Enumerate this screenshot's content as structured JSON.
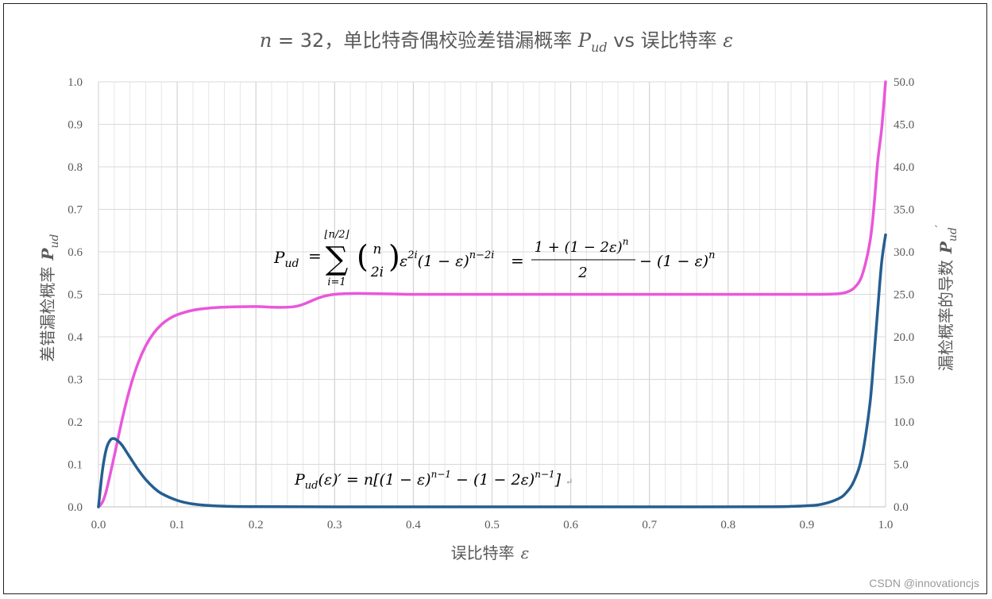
{
  "title": {
    "n_var": "n",
    "n_eq": " = 32，单比特奇偶校验差错漏概率 ",
    "p_var": "P",
    "p_sub": "ud",
    "vs_text": " vs 误比特率 ",
    "eps": "ε"
  },
  "y_left_label": {
    "text": "差错漏检概率",
    "p_var": "P",
    "p_sub": "ud"
  },
  "y_right_label": {
    "text": "漏检概率的导数",
    "p_var": "P",
    "p_sub": "ud",
    "prime": "′"
  },
  "x_label": {
    "text": "误比特率",
    "eps": "ε"
  },
  "formula_main": {
    "lhs_p": "P",
    "lhs_sub": "ud",
    "eq1": "=",
    "sum_top": "⌊n/2⌋",
    "sum_sym": "∑",
    "sum_bot": "i=1",
    "binom_top": "n",
    "binom_bot": "2i",
    "term1": "ε",
    "term1_sup": "2i",
    "term2": "(1 − ε)",
    "term2_sup": "n−2i",
    "eq2": "=",
    "frac_num": "1 + (1 − 2ε)",
    "frac_num_sup": "n",
    "frac_den": "2",
    "tail": "− (1 − ε)",
    "tail_sup": "n"
  },
  "formula_deriv": {
    "p": "P",
    "sub": "ud",
    "arg": "(ε)′ = n[(1 − ε)",
    "sup1": "n−1",
    "mid": " − (1 − 2ε)",
    "sup2": "n−1",
    "end": "]",
    "mark": "↵"
  },
  "watermark": "CSDN @innovationcjs",
  "chart_data": {
    "type": "line",
    "n": 32,
    "x_axis": {
      "range": [
        0,
        1
      ],
      "ticks": [
        0.0,
        0.1,
        0.2,
        0.3,
        0.4,
        0.5,
        0.6,
        0.7,
        0.8,
        0.9,
        1.0
      ],
      "tick_labels": [
        "0.0",
        "0.1",
        "0.2",
        "0.3",
        "0.4",
        "0.5",
        "0.6",
        "0.7",
        "0.8",
        "0.9",
        "1.0"
      ],
      "minor_step": 0.02
    },
    "y_left_axis": {
      "range": [
        0,
        1
      ],
      "ticks": [
        0.0,
        0.1,
        0.2,
        0.3,
        0.4,
        0.5,
        0.6,
        0.7,
        0.8,
        0.9,
        1.0
      ],
      "tick_labels": [
        "0.0",
        "0.1",
        "0.2",
        "0.3",
        "0.4",
        "0.5",
        "0.6",
        "0.7",
        "0.8",
        "0.9",
        "1.0"
      ]
    },
    "y_right_axis": {
      "range": [
        0,
        50
      ],
      "ticks": [
        0,
        5,
        10,
        15,
        20,
        25,
        30,
        35,
        40,
        45,
        50
      ],
      "tick_labels": [
        "0.0",
        "5.0",
        "10.0",
        "15.0",
        "20.0",
        "25.0",
        "30.0",
        "35.0",
        "40.0",
        "45.0",
        "50.0"
      ]
    },
    "grid": true,
    "series": [
      {
        "axis": "left",
        "color": "#e957da",
        "x": [
          0.0,
          0.005,
          0.01,
          0.02,
          0.03,
          0.04,
          0.05,
          0.06,
          0.07,
          0.08,
          0.09,
          0.1,
          0.12,
          0.14,
          0.16,
          0.18,
          0.2,
          0.25,
          0.3,
          0.4,
          0.5,
          0.6,
          0.7,
          0.8,
          0.85,
          0.9,
          0.92,
          0.94,
          0.95,
          0.96,
          0.97,
          0.98,
          0.985,
          0.99,
          0.995,
          1.0
        ],
        "y": [
          0.0,
          0.0109,
          0.038,
          0.1193,
          0.2052,
          0.2793,
          0.3368,
          0.3789,
          0.4085,
          0.4289,
          0.4427,
          0.452,
          0.4626,
          0.4675,
          0.4698,
          0.4708,
          0.4712,
          0.4714,
          0.5,
          0.5,
          0.5,
          0.5,
          0.5,
          0.5,
          0.5,
          0.5,
          0.5001,
          0.5014,
          0.5048,
          0.5151,
          0.544,
          0.6221,
          0.7015,
          0.8126,
          0.8896,
          1.0
        ]
      },
      {
        "axis": "right",
        "color": "#255e91",
        "x": [
          0.0,
          0.005,
          0.01,
          0.015,
          0.02,
          0.025,
          0.03,
          0.04,
          0.05,
          0.06,
          0.07,
          0.08,
          0.1,
          0.12,
          0.15,
          0.2,
          0.3,
          0.5,
          0.7,
          0.85,
          0.9,
          0.92,
          0.94,
          0.95,
          0.96,
          0.97,
          0.98,
          0.985,
          0.99,
          0.995,
          1.0
        ],
        "y": [
          0.0,
          4.27,
          6.83,
          7.86,
          8.03,
          7.73,
          7.25,
          5.83,
          4.43,
          3.21,
          2.27,
          1.57,
          0.76,
          0.34,
          0.11,
          0.02,
          0.0,
          0.0,
          0.0,
          0.01,
          0.13,
          0.33,
          0.95,
          1.67,
          3.07,
          5.95,
          12.03,
          17.35,
          23.2,
          28.76,
          32.0
        ]
      }
    ]
  }
}
